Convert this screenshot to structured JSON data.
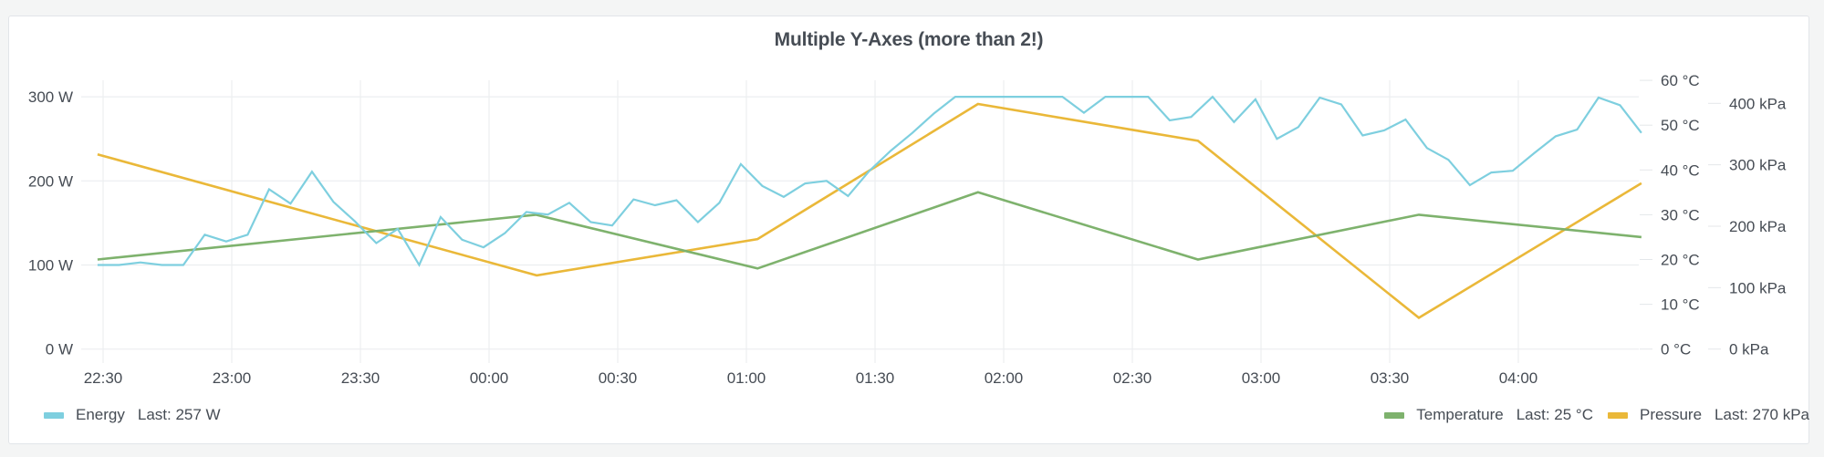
{
  "panel": {
    "title": "Multiple Y-Axes (more than 2!)"
  },
  "legend": {
    "left": [
      {
        "name": "Energy",
        "stat": "Last: 257 W",
        "color": "#7ecfdf"
      }
    ],
    "right": [
      {
        "name": "Temperature",
        "stat": "Last: 25 °C",
        "color": "#7eb26d"
      },
      {
        "name": "Pressure",
        "stat": "Last: 270 kPa",
        "color": "#eab839"
      }
    ]
  },
  "chart_data": {
    "type": "line",
    "title": "Multiple Y-Axes (more than 2!)",
    "xlabel": "",
    "x_ticks": [
      "22:30",
      "23:00",
      "23:30",
      "00:00",
      "00:30",
      "01:00",
      "01:30",
      "02:00",
      "02:30",
      "03:00",
      "03:30",
      "04:00"
    ],
    "x_range_minutes": [
      -1.3,
      358.7
    ],
    "axes": [
      {
        "id": "energy",
        "position": "left",
        "unit": "W",
        "ticks": [
          "0 W",
          "100 W",
          "200 W",
          "300 W"
        ],
        "range": [
          0,
          300
        ]
      },
      {
        "id": "temperature",
        "position": "right",
        "unit": "°C",
        "ticks": [
          "0 °C",
          "10 °C",
          "20 °C",
          "30 °C",
          "40 °C",
          "50 °C",
          "60 °C"
        ],
        "range": [
          0,
          60
        ]
      },
      {
        "id": "pressure",
        "position": "right",
        "unit": "kPa",
        "ticks": [
          "0 kPa",
          "100 kPa",
          "200 kPa",
          "300 kPa",
          "400 kPa"
        ],
        "range": [
          0,
          400
        ]
      }
    ],
    "grid": true,
    "legend_position": "bottom",
    "series": [
      {
        "name": "Energy",
        "axis": "energy",
        "color": "#7ecfdf",
        "last": 257,
        "x_start_minutes": -1.3,
        "x_step_minutes": 5,
        "values": [
          100,
          100,
          103,
          100,
          100,
          136,
          128,
          136,
          190,
          173,
          211,
          175,
          152,
          126,
          143,
          100,
          157,
          130,
          121,
          138,
          163,
          160,
          174,
          151,
          147,
          178,
          171,
          177,
          151,
          174,
          220,
          194,
          181,
          197,
          200,
          182,
          212,
          236,
          257,
          280,
          300,
          300,
          300,
          300,
          300,
          300,
          281,
          300,
          300,
          300,
          272,
          276,
          300,
          270,
          297,
          250,
          264,
          299,
          291,
          254,
          260,
          273,
          239,
          225,
          195,
          210,
          212,
          233,
          253,
          261,
          299,
          290,
          257
        ]
      },
      {
        "name": "Temperature",
        "axis": "temperature",
        "color": "#7eb26d",
        "last": 25,
        "x_minutes": [
          -1.3,
          100.9,
          152.6,
          204.0,
          255.3,
          306.8,
          358.7
        ],
        "values": [
          20,
          30,
          18,
          35,
          20,
          30,
          25
        ]
      },
      {
        "name": "Pressure",
        "axis": "pressure",
        "color": "#eab839",
        "last": 270,
        "x_minutes": [
          -1.3,
          101.1,
          152.6,
          204.0,
          255.3,
          306.8,
          358.7
        ],
        "values": [
          317,
          120,
          179,
          399,
          339,
          51,
          270
        ]
      }
    ]
  }
}
